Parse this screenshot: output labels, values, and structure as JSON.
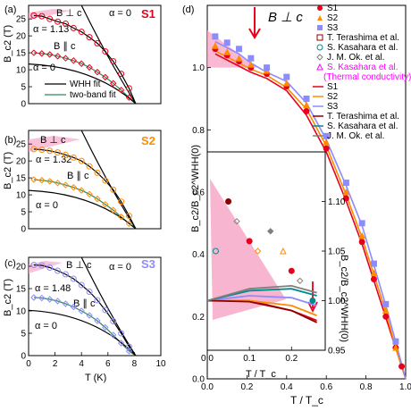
{
  "colors": {
    "S1": "#e8001c",
    "S2": "#ff8c00",
    "S3": "#8c8cff",
    "terashima": "#8b0000",
    "kasahara": "#008b8b",
    "ok": "#7f7f7f",
    "kasahara_thermal": "#ff00ff",
    "whh_fit": "#000000",
    "two_band_fit": "#2e8b57",
    "shade": "#f7a8c8"
  },
  "chart_data": [
    {
      "panel": "(a)",
      "type": "line",
      "sample_label": "S1",
      "xlabel": "",
      "ylabel": "B_c2 (T)",
      "xlim": [
        0,
        10
      ],
      "ylim": [
        0,
        29
      ],
      "yticks": [
        0,
        5,
        10,
        15,
        20,
        25
      ],
      "labels": {
        "perp": "B ⊥ c",
        "par": "B ∥ c",
        "alpha_fit": "α = 1.13",
        "alpha0_top": "α = 0",
        "alpha0_bottom": "α = 0"
      },
      "legend": [
        "WHH fit",
        "two-band fit"
      ],
      "series": [
        {
          "name": "B ⊥ c",
          "marker": "circle",
          "x": [
            0.4,
            1.0,
            1.6,
            2.2,
            2.8,
            3.4,
            4.0,
            4.6,
            5.2,
            5.8,
            6.4,
            7.0,
            7.6
          ],
          "y": [
            26.0,
            25.8,
            25.0,
            24.2,
            23.6,
            22.3,
            21.2,
            19.6,
            17.8,
            15.4,
            12.5,
            8.8,
            4.5
          ]
        },
        {
          "name": "B ∥ c",
          "marker": "diamond",
          "x": [
            0.4,
            1.0,
            1.6,
            2.2,
            2.8,
            3.4,
            4.0,
            4.6,
            5.2,
            5.8,
            6.4,
            7.0,
            7.6
          ],
          "y": [
            15.0,
            14.8,
            14.5,
            14.0,
            13.4,
            12.7,
            11.8,
            10.7,
            9.3,
            7.8,
            6.0,
            4.0,
            1.8
          ]
        }
      ]
    },
    {
      "panel": "(b)",
      "type": "line",
      "sample_label": "S2",
      "xlabel": "",
      "ylabel": "B_c2 (T)",
      "xlim": [
        0,
        10
      ],
      "ylim": [
        0,
        29
      ],
      "yticks": [
        0,
        5,
        10,
        15,
        20,
        25
      ],
      "labels": {
        "perp": "B ⊥ c",
        "par": "B ∥ c",
        "alpha_fit": "α = 1.32",
        "alpha0": "α = 0"
      },
      "series": [
        {
          "name": "B ⊥ c",
          "marker": "circle",
          "x": [
            0.4,
            1.0,
            1.6,
            2.2,
            2.8,
            3.4,
            4.0,
            4.6,
            5.2,
            5.8,
            6.4,
            7.0,
            7.6
          ],
          "y": [
            23.5,
            23.3,
            23.0,
            22.5,
            21.8,
            21.0,
            20.0,
            18.4,
            16.5,
            14.2,
            11.5,
            8.0,
            3.8
          ]
        },
        {
          "name": "B ∥ c",
          "marker": "diamond",
          "x": [
            0.4,
            1.0,
            1.6,
            2.2,
            2.8,
            3.4,
            4.0,
            4.6,
            5.2,
            5.8,
            6.4,
            7.0,
            7.6
          ],
          "y": [
            14.5,
            14.3,
            14.0,
            13.5,
            12.9,
            12.2,
            11.3,
            10.2,
            8.8,
            7.2,
            5.5,
            3.5,
            1.5
          ]
        }
      ]
    },
    {
      "panel": "(c)",
      "type": "line",
      "sample_label": "S3",
      "xlabel": "T (K)",
      "ylabel": "B_c2 (T)",
      "xlim": [
        0,
        10
      ],
      "ylim": [
        0,
        22
      ],
      "yticks": [
        0,
        5,
        10,
        15,
        20
      ],
      "xticks": [
        0,
        2,
        4,
        6,
        8,
        10
      ],
      "labels": {
        "perp": "B ⊥ c",
        "par": "B ∥ c",
        "alpha_fit": "α = 1.48",
        "alpha0_top": "α = 0",
        "alpha0_bottom": "α = 0"
      },
      "series": [
        {
          "name": "B ⊥ c",
          "marker": "circle",
          "x": [
            0.4,
            1.0,
            1.6,
            2.2,
            2.8,
            3.4,
            4.0,
            4.6,
            5.2,
            5.8,
            6.4,
            7.0,
            7.6
          ],
          "y": [
            20.3,
            20.2,
            19.7,
            19.0,
            18.2,
            17.2,
            15.8,
            14.3,
            12.4,
            10.2,
            7.7,
            5.0,
            2.0
          ]
        },
        {
          "name": "B ∥ c",
          "marker": "diamond",
          "x": [
            0.4,
            1.0,
            1.6,
            2.2,
            2.8,
            3.4,
            4.0,
            4.6,
            5.2,
            5.8,
            6.4,
            7.0,
            7.6
          ],
          "y": [
            13.0,
            12.9,
            12.6,
            12.2,
            11.6,
            10.9,
            10.0,
            9.0,
            7.8,
            6.3,
            4.6,
            2.8,
            1.0
          ]
        }
      ]
    },
    {
      "panel": "(d)",
      "type": "scatter",
      "title": "B ⊥ c",
      "xlabel": "T / T_c",
      "ylabel": "B_c2/B_c2^WHH(0)",
      "xlim": [
        0,
        1.0
      ],
      "ylim": [
        0,
        1.2
      ],
      "xticks": [
        0.0,
        0.2,
        0.4,
        0.6,
        0.8,
        1.0
      ],
      "yticks": [
        0.0,
        0.2,
        0.4,
        0.6,
        0.8,
        1.0
      ],
      "legend": [
        "S1",
        "S2",
        "S3",
        "T. Terashima et al.",
        "S. Kasahara et al.",
        "J. M. Ok. et al.",
        "S. Kasahara et al.",
        "(Thermal conductivity)",
        "S1",
        "S2",
        "S3",
        "T. Terashima et al.",
        "S. Kasahara et al.",
        "J. M. Ok. et al."
      ],
      "legend_placement": "top-right",
      "series": [
        {
          "name": "S1",
          "marker": "circle",
          "x": [
            0.04,
            0.1,
            0.16,
            0.22,
            0.3,
            0.4,
            0.5,
            0.6,
            0.7,
            0.78,
            0.84,
            0.9,
            0.95,
            0.98
          ],
          "y": [
            1.06,
            1.04,
            1.02,
            1.0,
            0.98,
            0.94,
            0.86,
            0.74,
            0.58,
            0.44,
            0.32,
            0.2,
            0.1,
            0.04
          ]
        },
        {
          "name": "S2",
          "marker": "triangle",
          "x": [
            0.04,
            0.1,
            0.16,
            0.22,
            0.3,
            0.4,
            0.5,
            0.6,
            0.7,
            0.78,
            0.84,
            0.9,
            0.95
          ],
          "y": [
            1.07,
            1.05,
            1.03,
            1.01,
            0.99,
            0.95,
            0.88,
            0.76,
            0.6,
            0.46,
            0.34,
            0.22,
            0.1
          ]
        },
        {
          "name": "S3",
          "marker": "square",
          "x": [
            0.04,
            0.1,
            0.16,
            0.22,
            0.3,
            0.4,
            0.5,
            0.6,
            0.7,
            0.78,
            0.84,
            0.9,
            0.95
          ],
          "y": [
            1.1,
            1.08,
            1.06,
            1.03,
            1.0,
            0.97,
            0.9,
            0.78,
            0.63,
            0.5,
            0.37,
            0.24,
            0.12
          ]
        }
      ],
      "inset": {
        "xlabel": "T / T_c",
        "ylabel": "B_c2/B_c2^WHH(0)",
        "xlim": [
          0,
          0.28
        ],
        "ylim": [
          0.95,
          1.15
        ],
        "xticks": [
          0.0,
          0.1,
          0.2
        ],
        "yticks": [
          0.95,
          1.0,
          1.05,
          1.1
        ]
      }
    }
  ]
}
